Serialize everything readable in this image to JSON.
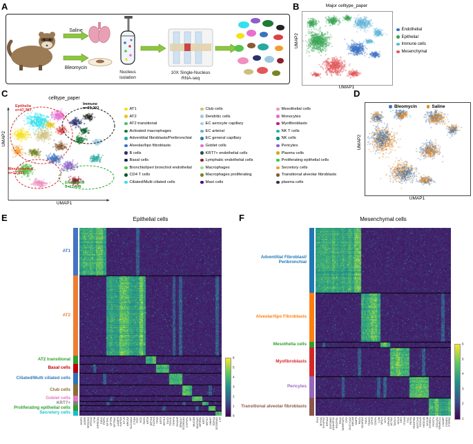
{
  "panels": {
    "A": "A",
    "B": "B",
    "C": "C",
    "D": "D",
    "E": "E",
    "F": "F"
  },
  "panelA": {
    "saline": "Saline",
    "bleomycin": "Bleomycin",
    "nucleus_line1": "Nucleus",
    "nucleus_line2": "isolation",
    "tenx_line1": "10X Single-Nucleus",
    "tenx_line2": "RNA-seq"
  },
  "panelB": {
    "title": "Major celltype_paper",
    "xlabel": "UMAP1",
    "ylabel": "UMAP2",
    "legend": [
      {
        "label": "Endothelial",
        "color": "#3a72c2"
      },
      {
        "label": "Epithelial",
        "color": "#3aa655"
      },
      {
        "label": "Immune cells",
        "color": "#64b5d9"
      },
      {
        "label": "Mesenchymal",
        "color": "#e25759"
      }
    ],
    "clusters": [
      [
        0.17,
        0.4,
        0.11,
        0.13,
        "#3aa655",
        650
      ],
      [
        0.1,
        0.15,
        0.05,
        0.05,
        "#3aa655",
        150
      ],
      [
        0.33,
        0.12,
        0.06,
        0.05,
        "#3aa655",
        180
      ],
      [
        0.5,
        0.08,
        0.04,
        0.03,
        "#3aa655",
        90
      ],
      [
        0.66,
        0.15,
        0.09,
        0.07,
        "#64b5d9",
        320
      ],
      [
        0.84,
        0.28,
        0.05,
        0.05,
        "#64b5d9",
        130
      ],
      [
        0.74,
        0.4,
        0.04,
        0.03,
        "#64b5d9",
        80
      ],
      [
        0.6,
        0.5,
        0.09,
        0.08,
        "#3a72c2",
        340
      ],
      [
        0.8,
        0.58,
        0.05,
        0.04,
        "#3a72c2",
        110
      ],
      [
        0.35,
        0.74,
        0.11,
        0.1,
        "#e25759",
        480
      ],
      [
        0.57,
        0.84,
        0.06,
        0.04,
        "#e25759",
        130
      ],
      [
        0.15,
        0.85,
        0.04,
        0.03,
        "#e25759",
        70
      ]
    ]
  },
  "panelC": {
    "title": "celltype_paper",
    "xlabel": "UMAP1",
    "ylabel": "UMAP2",
    "regions": [
      {
        "label": "Epithelia",
        "n": "n=47,797",
        "color": "#d62728"
      },
      {
        "label": "Immune",
        "n": "n=29,202",
        "color": "#111111"
      },
      {
        "label": "Mesenchymal",
        "n": "n=13,623",
        "color": "#d62728"
      },
      {
        "label": "Endothelia",
        "n": "n=17,498",
        "color": "#2ca02c"
      }
    ],
    "legend_columns": [
      [
        {
          "label": "AT1",
          "color": "#f4e01b"
        },
        {
          "label": "AT2",
          "color": "#e8c51d"
        },
        {
          "label": "AT2 transitional",
          "color": "#4dbd6e"
        },
        {
          "label": "Activated macrophages",
          "color": "#1e7a34"
        },
        {
          "label": "Adventitial fibroblasts/Peribronchial",
          "color": "#2aa8a0"
        },
        {
          "label": "Alveolar/lipo fibroblasts",
          "color": "#3a72c2"
        },
        {
          "label": "B cells",
          "color": "#27336e"
        },
        {
          "label": "Basal cells",
          "color": "#151b54"
        },
        {
          "label": "Bronchiol/peri bronchiol endothelial",
          "color": "#58c14c"
        },
        {
          "label": "CD4 T cells",
          "color": "#0b5a2a"
        },
        {
          "label": "Ciliated/Multi ciliated cells",
          "color": "#33e0ee"
        }
      ],
      [
        {
          "label": "Club cells",
          "color": "#cbbf7a"
        },
        {
          "label": "Dendritic cells",
          "color": "#9ecae1"
        },
        {
          "label": "EC aerocyte capillary",
          "color": "#a6cee3"
        },
        {
          "label": "EC arterial",
          "color": "#6baed6"
        },
        {
          "label": "EC general capillary",
          "color": "#2b7bba"
        },
        {
          "label": "Goblet cells",
          "color": "#e86ed0"
        },
        {
          "label": "KRT7+ endothelial cells",
          "color": "#2f4f4f"
        },
        {
          "label": "Lymphatic endothelial cells",
          "color": "#8c1f28"
        },
        {
          "label": "Macrophages",
          "color": "#98df8a"
        },
        {
          "label": "Macrophages proliferating",
          "color": "#7a8426"
        },
        {
          "label": "Mast cells",
          "color": "#4b0082"
        }
      ],
      [
        {
          "label": "Mesothelial cells",
          "color": "#f08fc0"
        },
        {
          "label": "Monocytes",
          "color": "#da70d6"
        },
        {
          "label": "Myofibroblasts",
          "color": "#c71585"
        },
        {
          "label": "NK T cells",
          "color": "#20b2aa"
        },
        {
          "label": "NK cells",
          "color": "#008b8b"
        },
        {
          "label": "Pericytes",
          "color": "#8d5fc9"
        },
        {
          "label": "Plasma cells",
          "color": "#daa520"
        },
        {
          "label": "Proliferating epithelial cells",
          "color": "#32cd32"
        },
        {
          "label": "Secretory cells",
          "color": "#f39c2c"
        },
        {
          "label": "Transitional alveolar fibroblasts",
          "color": "#8a5a32"
        },
        {
          "label": "plasma cells",
          "color": "#2c2c54"
        }
      ]
    ],
    "clusters": [
      [
        0.25,
        0.18,
        0.1,
        0.08,
        "#33e0ee",
        300
      ],
      [
        0.44,
        0.12,
        0.06,
        0.05,
        "#e86ed0",
        150
      ],
      [
        0.1,
        0.33,
        0.06,
        0.06,
        "#f4e01b",
        160
      ],
      [
        0.3,
        0.33,
        0.07,
        0.06,
        "#cbbf7a",
        160
      ],
      [
        0.47,
        0.28,
        0.04,
        0.04,
        "#d94343",
        90
      ],
      [
        0.6,
        0.2,
        0.05,
        0.04,
        "#27336e",
        110
      ],
      [
        0.72,
        0.14,
        0.04,
        0.03,
        "#222222",
        80
      ],
      [
        0.64,
        0.38,
        0.05,
        0.04,
        "#1e7a34",
        100
      ],
      [
        0.14,
        0.7,
        0.07,
        0.06,
        "#58c14c",
        200
      ],
      [
        0.4,
        0.58,
        0.06,
        0.05,
        "#3a72c2",
        140
      ],
      [
        0.54,
        0.66,
        0.06,
        0.05,
        "#8d5fc9",
        140
      ],
      [
        0.27,
        0.84,
        0.06,
        0.04,
        "#f08fc0",
        130
      ],
      [
        0.6,
        0.82,
        0.05,
        0.04,
        "#8c1f28",
        110
      ],
      [
        0.78,
        0.58,
        0.05,
        0.04,
        "#2aa8a0",
        100
      ],
      [
        0.46,
        0.45,
        0.05,
        0.04,
        "#8a5a32",
        110
      ],
      [
        0.22,
        0.52,
        0.05,
        0.04,
        "#7a8426",
        110
      ],
      [
        0.8,
        0.4,
        0.04,
        0.03,
        "#9ecae1",
        80
      ],
      [
        0.07,
        0.5,
        0.04,
        0.05,
        "#f39c2c",
        90
      ],
      [
        0.68,
        0.28,
        0.04,
        0.03,
        "#0b5a2a",
        70
      ],
      [
        0.36,
        0.22,
        0.04,
        0.03,
        "#e8c51d",
        80
      ]
    ]
  },
  "panelD": {
    "xlabel": "UMAP1",
    "ylabel": "UMAP2",
    "legend": [
      {
        "label": "Bleomycin",
        "color": "#3b74b8"
      },
      {
        "label": "Saline",
        "color": "#e8871e"
      }
    ],
    "clusters": [
      [
        0.17,
        0.4,
        0.11,
        0.13,
        "#e8871e",
        420
      ],
      [
        0.15,
        0.38,
        0.1,
        0.12,
        "#3b74b8",
        260
      ],
      [
        0.1,
        0.15,
        0.05,
        0.05,
        "#e8871e",
        100
      ],
      [
        0.11,
        0.16,
        0.05,
        0.05,
        "#3b74b8",
        80
      ],
      [
        0.33,
        0.12,
        0.06,
        0.05,
        "#3b74b8",
        140
      ],
      [
        0.35,
        0.13,
        0.05,
        0.04,
        "#e8871e",
        90
      ],
      [
        0.66,
        0.15,
        0.09,
        0.07,
        "#3b74b8",
        200
      ],
      [
        0.68,
        0.16,
        0.08,
        0.06,
        "#e8871e",
        160
      ],
      [
        0.84,
        0.28,
        0.05,
        0.05,
        "#e8871e",
        90
      ],
      [
        0.83,
        0.29,
        0.05,
        0.05,
        "#3b74b8",
        70
      ],
      [
        0.6,
        0.5,
        0.09,
        0.08,
        "#3b74b8",
        200
      ],
      [
        0.62,
        0.52,
        0.08,
        0.07,
        "#e8871e",
        170
      ],
      [
        0.35,
        0.74,
        0.11,
        0.1,
        "#e8871e",
        300
      ],
      [
        0.37,
        0.76,
        0.1,
        0.09,
        "#3b74b8",
        220
      ],
      [
        0.57,
        0.84,
        0.06,
        0.04,
        "#3b74b8",
        90
      ],
      [
        0.56,
        0.83,
        0.06,
        0.04,
        "#e8871e",
        80
      ]
    ]
  },
  "panelE": {
    "title": "Epithelial cells",
    "colorbar_ticks": [
      "6",
      "5",
      "4",
      "3",
      "2",
      "1",
      "0"
    ],
    "groups": [
      {
        "name": "AT1",
        "color": "#4472c4",
        "rows": 70,
        "genes": [
          "HOPX",
          "AGER",
          "SPOCK2",
          "RTKN2",
          "NTM",
          "GPRC5A",
          "CAV1",
          "PDPN"
        ]
      },
      {
        "name": "AT2",
        "color": "#ed7d31",
        "rows": 118,
        "genes": [
          "SFTPC",
          "SFTPB",
          "SFTPA1",
          "LAMP3",
          "NAPSA",
          "ETV5",
          "ABCA3",
          "SLC34A2",
          "CTSH",
          "PGC",
          "SCD",
          "FASN"
        ]
      },
      {
        "name": "AT2 transitional",
        "color": "#2ca02c",
        "rows": 12,
        "genes": [
          "KRT8",
          "KRT18",
          "CLDN4"
        ]
      },
      {
        "name": "Basal cells",
        "color": "#c00000",
        "rows": 13,
        "genes": [
          "TP63",
          "KRT5",
          "KRT14",
          "DLK2"
        ]
      },
      {
        "name": "Ciliated/Multi ciliated cells",
        "color": "#2e75b6",
        "rows": 17,
        "genes": [
          "FOXJ1",
          "TPPP3",
          "DNAH5",
          "SPAG17"
        ]
      },
      {
        "name": "Club cells",
        "color": "#8c6d31",
        "rows": 17,
        "genes": [
          "SCGB1A1",
          "CYP2F1",
          "HP"
        ]
      },
      {
        "name": "Goblet cells",
        "color": "#e377c2",
        "rows": 8,
        "genes": [
          "MUC5B",
          "MUC5AC",
          "BPIFB1"
        ]
      },
      {
        "name": "KRT7+",
        "color": "#7f7f7f",
        "rows": 6,
        "genes": [
          "KRT7",
          "KRT17"
        ]
      },
      {
        "name": "Proliferating epithelial cells",
        "color": "#2ca02c",
        "rows": 8,
        "genes": [
          "MKI67",
          "TOP2A"
        ]
      },
      {
        "name": "Secretory cells",
        "color": "#17becf",
        "rows": 7,
        "genes": [
          "SCGB3A2",
          "LTF"
        ]
      }
    ]
  },
  "panelF": {
    "title": "Mesenchymal cells",
    "colorbar_ticks": [
      "6",
      "5",
      "4",
      "3",
      "2",
      "1"
    ],
    "groups": [
      {
        "name": "Adventitial Fibroblast/ Peribronchial",
        "color": "#1f77b4",
        "rows": 95,
        "genes": [
          "PI16",
          "MYH11",
          "SYNPO2",
          "EPHA3",
          "ZNF385D",
          "ADAMTS1",
          "PDGFRL",
          "FBN1",
          "SERPINF1",
          "CFD",
          "GUCY1A2",
          "ABCA8",
          "BMP5",
          "PAG1"
        ]
      },
      {
        "name": "Alveolar/lipo Fibroblasts",
        "color": "#ff7f0e",
        "rows": 72,
        "genes": [
          "SCARA5",
          "NAV1",
          "TSHZ2",
          "GPC6",
          "CDON",
          "LUM"
        ]
      },
      {
        "name": "Mesothelia cells",
        "color": "#2ca02c",
        "rows": 8,
        "genes": [
          "MSLN",
          "WT1",
          "UPK3B"
        ]
      },
      {
        "name": "Myofibroblasts",
        "color": "#d62728",
        "rows": 42,
        "genes": [
          "ACTA2",
          "TAGLN",
          "MYL9",
          "DES",
          "ITGA8",
          "TNC"
        ]
      },
      {
        "name": "Pericytes",
        "color": "#9467bd",
        "rows": 32,
        "genes": [
          "RGS5",
          "PDGFRB",
          "NOTCH3",
          "COX4I2",
          "HIGD1B",
          "KCNJ8"
        ]
      },
      {
        "name": "Transitional alveolar fibroblasts",
        "color": "#8c564b",
        "rows": 26,
        "genes": [
          "CTHRC1",
          "POSTN",
          "COL1A1",
          "SPARCL1",
          "LSAMP",
          "CSMD1",
          "PTPRD"
        ]
      }
    ]
  }
}
